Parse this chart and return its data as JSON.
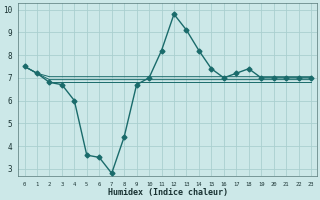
{
  "xlabel": "Humidex (Indice chaleur)",
  "ylabel": "",
  "xlim": [
    -0.5,
    23.5
  ],
  "ylim": [
    2.7,
    10.3
  ],
  "yticks": [
    3,
    4,
    5,
    6,
    7,
    8,
    9,
    10
  ],
  "xticks": [
    0,
    1,
    2,
    3,
    4,
    5,
    6,
    7,
    8,
    9,
    10,
    11,
    12,
    13,
    14,
    15,
    16,
    17,
    18,
    19,
    20,
    21,
    22,
    23
  ],
  "bg_color": "#cce8e8",
  "line_color": "#1a6b6b",
  "grid_color": "#aacfcf",
  "lines": [
    {
      "x": [
        0,
        1,
        2,
        3,
        4,
        5,
        6,
        7,
        8,
        9,
        10,
        11,
        12,
        13,
        14,
        15,
        16,
        17,
        18,
        19,
        20,
        21,
        22,
        23
      ],
      "y": [
        7.5,
        7.2,
        6.8,
        6.7,
        6.0,
        3.6,
        3.5,
        2.8,
        4.4,
        6.7,
        7.0,
        8.2,
        9.8,
        9.1,
        8.2,
        7.4,
        7.0,
        7.2,
        7.4,
        7.0,
        7.0,
        7.0,
        7.0,
        7.0
      ],
      "marker": "D",
      "markersize": 2.5,
      "lw": 1.0
    },
    {
      "x": [
        0,
        1,
        2,
        3,
        4,
        5,
        6,
        7,
        8,
        9,
        10,
        11,
        12,
        13,
        14,
        15,
        16,
        17,
        18,
        19,
        20,
        21,
        22,
        23
      ],
      "y": [
        7.5,
        7.2,
        7.05,
        7.05,
        7.05,
        7.05,
        7.05,
        7.05,
        7.05,
        7.05,
        7.05,
        7.05,
        7.05,
        7.05,
        7.05,
        7.05,
        7.05,
        7.05,
        7.05,
        7.05,
        7.05,
        7.05,
        7.05,
        7.05
      ],
      "marker": null,
      "markersize": 0,
      "lw": 0.7
    },
    {
      "x": [
        0,
        1,
        2,
        3,
        4,
        5,
        6,
        7,
        8,
        9,
        10,
        11,
        12,
        13,
        14,
        15,
        16,
        17,
        18,
        19,
        20,
        21,
        22,
        23
      ],
      "y": [
        7.5,
        7.2,
        6.92,
        6.92,
        6.92,
        6.92,
        6.92,
        6.92,
        6.92,
        6.92,
        6.92,
        6.92,
        6.92,
        6.92,
        6.92,
        6.92,
        6.92,
        6.92,
        6.92,
        6.92,
        6.92,
        6.92,
        6.92,
        6.92
      ],
      "marker": null,
      "markersize": 0,
      "lw": 0.7
    },
    {
      "x": [
        2,
        3,
        4,
        5,
        6,
        7,
        8,
        9,
        10,
        11,
        12,
        13,
        14,
        15,
        16,
        17,
        18,
        19,
        20,
        21,
        22,
        23
      ],
      "y": [
        6.8,
        6.8,
        6.8,
        6.8,
        6.8,
        6.8,
        6.8,
        6.8,
        6.8,
        6.8,
        6.8,
        6.8,
        6.8,
        6.8,
        6.8,
        6.8,
        6.8,
        6.8,
        6.8,
        6.8,
        6.8,
        6.8
      ],
      "marker": null,
      "markersize": 0,
      "lw": 0.7
    }
  ]
}
